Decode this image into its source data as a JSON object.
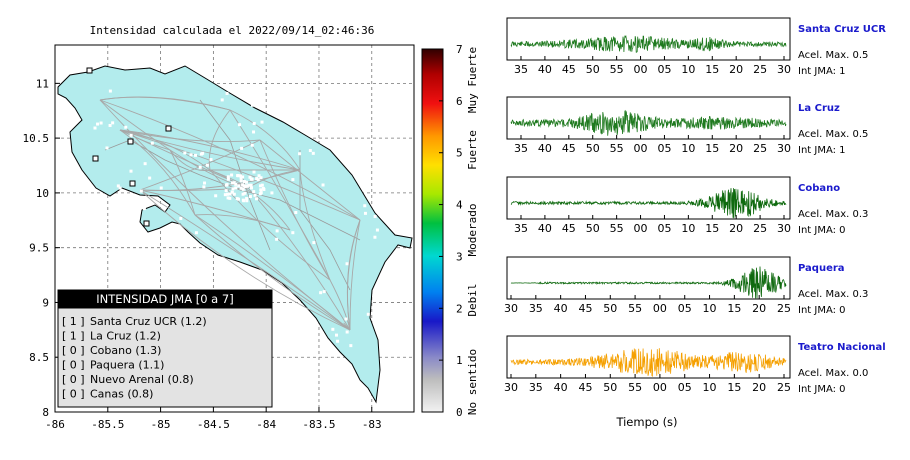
{
  "map": {
    "title": "Intensidad calculada el 2022/09/14_02:46:36",
    "x_ticks": [
      "-86",
      "-85.5",
      "-85",
      "-84.5",
      "-84",
      "-83.5",
      "-83"
    ],
    "y_ticks": [
      "8",
      "8.5",
      "9",
      "9.5",
      "10",
      "10.5",
      "11"
    ],
    "xlim": [
      -86,
      -82.6
    ],
    "ylim": [
      8,
      11.35
    ],
    "fill_color": "#b3eced",
    "legend": {
      "title": "INTENSIDAD JMA [0 a 7]",
      "items": [
        {
          "level": "[ 1 ]",
          "label": "Santa Cruz UCR (1.2)"
        },
        {
          "level": "[ 1 ]",
          "label": "La Cruz (1.2)"
        },
        {
          "level": "[ 0 ]",
          "label": "Cobano (1.3)"
        },
        {
          "level": "[ 0 ]",
          "label": "Paquera (1.1)"
        },
        {
          "level": "[ 0 ]",
          "label": "Nuevo Arenal (0.8)"
        },
        {
          "level": "[ 0 ]",
          "label": "Canas (0.8)"
        }
      ]
    }
  },
  "colorbar": {
    "ticks": [
      "0",
      "1",
      "2",
      "3",
      "4",
      "5",
      "6",
      "7"
    ],
    "categories": [
      "No sentido",
      "Debil",
      "Moderado",
      "Fuerte",
      "Muy Fuerte"
    ]
  },
  "waveforms": {
    "xlabel": "Tiempo (s)",
    "panels": [
      {
        "station": "Santa Cruz UCR",
        "accel": "Acel. Max. 0.5",
        "jma": "Int JMA: 1",
        "color": "#1f7a1f",
        "ticks": [
          "35",
          "40",
          "45",
          "50",
          "55",
          "00",
          "05",
          "10",
          "15",
          "20",
          "25",
          "30"
        ]
      },
      {
        "station": "La Cruz",
        "accel": "Acel. Max. 0.5",
        "jma": "Int JMA: 1",
        "color": "#1f7a1f",
        "ticks": [
          "35",
          "40",
          "45",
          "50",
          "55",
          "00",
          "05",
          "10",
          "15",
          "20",
          "25",
          "30"
        ]
      },
      {
        "station": "Cobano",
        "accel": "Acel. Max. 0.3",
        "jma": "Int JMA: 0",
        "color": "#0f6a0f",
        "ticks": [
          "35",
          "40",
          "45",
          "50",
          "55",
          "00",
          "05",
          "10",
          "15",
          "20",
          "25",
          "30"
        ]
      },
      {
        "station": "Paquera",
        "accel": "Acel. Max. 0.3",
        "jma": "Int JMA: 0",
        "color": "#0f6a0f",
        "ticks": [
          "30",
          "35",
          "40",
          "45",
          "50",
          "55",
          "00",
          "05",
          "10",
          "15",
          "20",
          "25"
        ]
      },
      {
        "station": "Teatro Nacional",
        "accel": "Acel. Max. 0.0",
        "jma": "Int JMA: 0",
        "color": "#f5a000",
        "ticks": [
          "30",
          "35",
          "40",
          "45",
          "50",
          "55",
          "00",
          "05",
          "10",
          "15",
          "20",
          "25"
        ]
      }
    ]
  }
}
